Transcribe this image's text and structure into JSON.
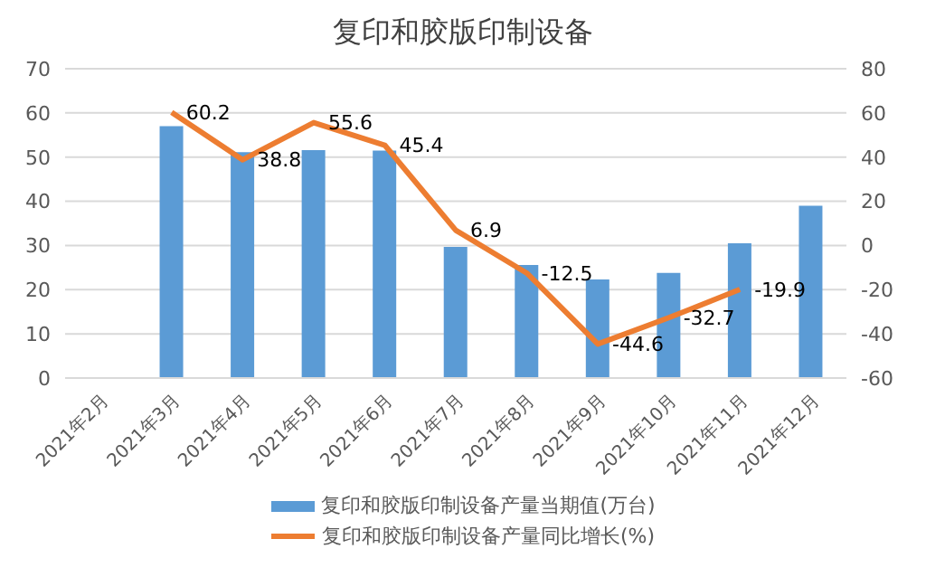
{
  "chart_data": {
    "type": "bar",
    "title": "复印和胶版印制设备",
    "categories": [
      "2021年2月",
      "2021年3月",
      "2021年4月",
      "2021年5月",
      "2021年6月",
      "2021年7月",
      "2021年8月",
      "2021年9月",
      "2021年10月",
      "2021年11月",
      "2021年12月"
    ],
    "series": [
      {
        "name": "复印和胶版印制设备产量当期值(万台)",
        "color": "#5b9bd5",
        "values": [
          null,
          57.0,
          51.1,
          51.6,
          51.5,
          29.7,
          25.6,
          22.3,
          23.8,
          30.5,
          39.0
        ]
      },
      {
        "name": "复印和胶版印制设备产量同比增长(%)",
        "type": "line",
        "axis": "y2",
        "color": "#ed7d31",
        "values": [
          null,
          60.2,
          38.8,
          55.6,
          45.4,
          6.9,
          -12.5,
          -44.6,
          -32.7,
          -19.9,
          null
        ],
        "value_labels": [
          null,
          "60.2",
          "38.8",
          "55.6",
          "45.4",
          "6.9",
          "-12.5",
          "-44.6",
          "-32.7",
          "-19.9",
          null
        ]
      }
    ],
    "ylim": [
      0,
      70
    ],
    "yticks": [
      0,
      10,
      20,
      30,
      40,
      50,
      60,
      70
    ],
    "y2lim": [
      -60,
      80
    ],
    "y2ticks": [
      -60,
      -40,
      -20,
      0,
      20,
      40,
      60,
      80
    ],
    "grid": "y",
    "legend": "bottom",
    "marker": "none"
  }
}
